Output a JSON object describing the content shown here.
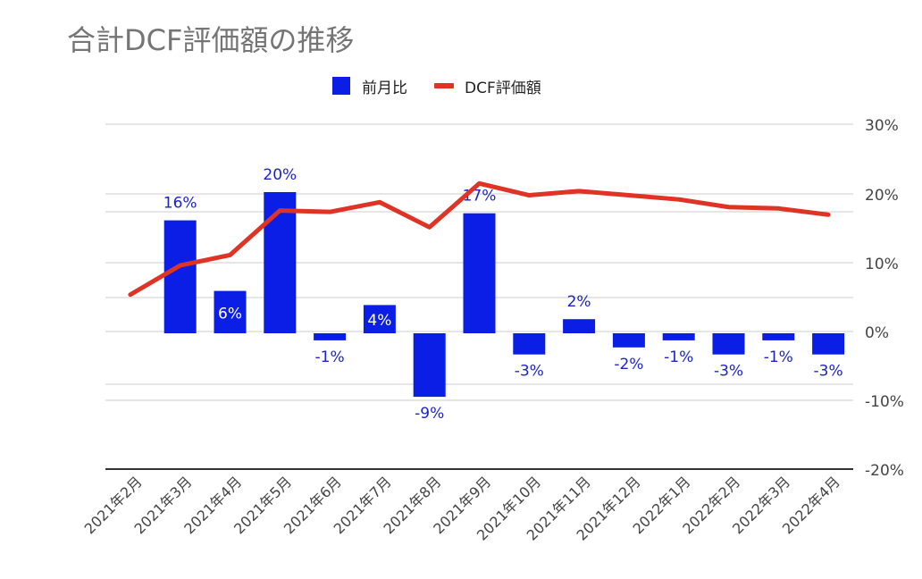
{
  "title": "合計DCF評価額の推移",
  "colors": {
    "bar": "#0a1ee6",
    "line": "#de3325",
    "bar_label": "#1a24c9",
    "grid": "#cccccc",
    "axis_text": "#444444"
  },
  "legend": {
    "bar_label": "前月比",
    "line_label": "DCF評価額"
  },
  "chart_data": {
    "type": "bar+line",
    "title": "合計DCF評価額の推移",
    "categories": [
      "2021年2月",
      "2021年3月",
      "2021年4月",
      "2021年5月",
      "2021年6月",
      "2021年7月",
      "2021年8月",
      "2021年9月",
      "2021年10月",
      "2021年11月",
      "2021年12月",
      "2022年1月",
      "2022年2月",
      "2022年3月",
      "2022年4月"
    ],
    "right_axis": {
      "ticks": [
        "30%",
        "20%",
        "10%",
        "0%",
        "-10%",
        "-20%"
      ],
      "range": [
        -20,
        30
      ]
    },
    "series": [
      {
        "name": "前月比",
        "type": "bar",
        "values": [
          null,
          16,
          6,
          20,
          -1,
          4,
          -9,
          17,
          -3,
          2,
          -2,
          -1,
          -3,
          -1,
          -3
        ],
        "labels": [
          "",
          "16%",
          "6%",
          "20%",
          "-1%",
          "4%",
          "-9%",
          "17%",
          "-3%",
          "2%",
          "-2%",
          "-1%",
          "-3%",
          "-1%",
          "-3%"
        ]
      },
      {
        "name": "DCF評価額",
        "type": "line",
        "values_on_right_axis": [
          5.3,
          9.5,
          11.0,
          17.4,
          17.2,
          18.6,
          15.0,
          21.3,
          19.6,
          20.2,
          19.6,
          19.0,
          17.9,
          17.7,
          16.8
        ]
      }
    ],
    "grid": true,
    "legend_position": "top"
  }
}
